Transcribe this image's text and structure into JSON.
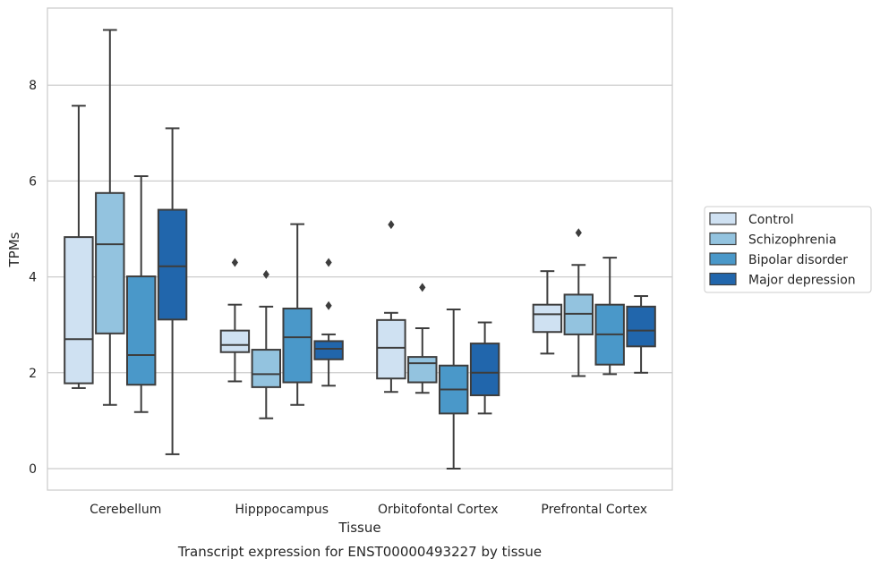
{
  "chart_data": {
    "type": "box",
    "title": "",
    "caption": "Transcript expression for ENST00000493227 by tissue",
    "xlabel": "Tissue",
    "ylabel": "TPMs",
    "ylim": [
      -0.42,
      9.6
    ],
    "yticks": [
      "0",
      "2",
      "4",
      "6",
      "8"
    ],
    "grid": "horizontal",
    "legend_position": "right",
    "categories": [
      "Cerebellum",
      "Hipppocampus",
      "Orbitofontal Cortex",
      "Prefrontal Cortex"
    ],
    "series": [
      {
        "name": "Control",
        "color": "#cfe1f2",
        "boxes": [
          {
            "whislo": 1.68,
            "q1": 1.78,
            "med": 2.7,
            "q3": 4.83,
            "whishi": 7.57,
            "fliers": []
          },
          {
            "whislo": 1.82,
            "q1": 2.43,
            "med": 2.58,
            "q3": 2.88,
            "whishi": 3.42,
            "fliers": [
              4.3
            ]
          },
          {
            "whislo": 1.6,
            "q1": 1.88,
            "med": 2.52,
            "q3": 3.1,
            "whishi": 3.25,
            "fliers": [
              5.09
            ]
          },
          {
            "whislo": 2.4,
            "q1": 2.85,
            "med": 3.22,
            "q3": 3.42,
            "whishi": 4.12,
            "fliers": []
          }
        ]
      },
      {
        "name": "Schizophrenia",
        "color": "#93c3df",
        "boxes": [
          {
            "whislo": 1.33,
            "q1": 2.82,
            "med": 4.68,
            "q3": 5.75,
            "whishi": 9.15,
            "fliers": []
          },
          {
            "whislo": 1.05,
            "q1": 1.7,
            "med": 1.97,
            "q3": 2.48,
            "whishi": 3.38,
            "fliers": [
              4.05
            ]
          },
          {
            "whislo": 1.58,
            "q1": 1.8,
            "med": 2.2,
            "q3": 2.33,
            "whishi": 2.93,
            "fliers": [
              3.78
            ]
          },
          {
            "whislo": 1.93,
            "q1": 2.8,
            "med": 3.23,
            "q3": 3.63,
            "whishi": 4.25,
            "fliers": [
              4.92
            ]
          }
        ]
      },
      {
        "name": "Bipolar disorder",
        "color": "#4a98c9",
        "boxes": [
          {
            "whislo": 1.18,
            "q1": 1.75,
            "med": 2.37,
            "q3": 4.01,
            "whishi": 6.1,
            "fliers": []
          },
          {
            "whislo": 1.33,
            "q1": 1.8,
            "med": 2.74,
            "q3": 3.34,
            "whishi": 5.1,
            "fliers": []
          },
          {
            "whislo": 0.0,
            "q1": 1.15,
            "med": 1.65,
            "q3": 2.15,
            "whishi": 3.32,
            "fliers": []
          },
          {
            "whislo": 1.97,
            "q1": 2.17,
            "med": 2.8,
            "q3": 3.42,
            "whishi": 4.4,
            "fliers": []
          }
        ]
      },
      {
        "name": "Major depression",
        "color": "#2166ac",
        "boxes": [
          {
            "whislo": 0.3,
            "q1": 3.11,
            "med": 4.22,
            "q3": 5.4,
            "whishi": 7.1,
            "fliers": []
          },
          {
            "whislo": 1.73,
            "q1": 2.28,
            "med": 2.5,
            "q3": 2.66,
            "whishi": 2.8,
            "fliers": [
              3.4,
              4.3
            ]
          },
          {
            "whislo": 1.15,
            "q1": 1.53,
            "med": 2.0,
            "q3": 2.61,
            "whishi": 3.05,
            "fliers": []
          },
          {
            "whislo": 2.0,
            "q1": 2.55,
            "med": 2.88,
            "q3": 3.38,
            "whishi": 3.6,
            "fliers": []
          }
        ]
      }
    ]
  }
}
